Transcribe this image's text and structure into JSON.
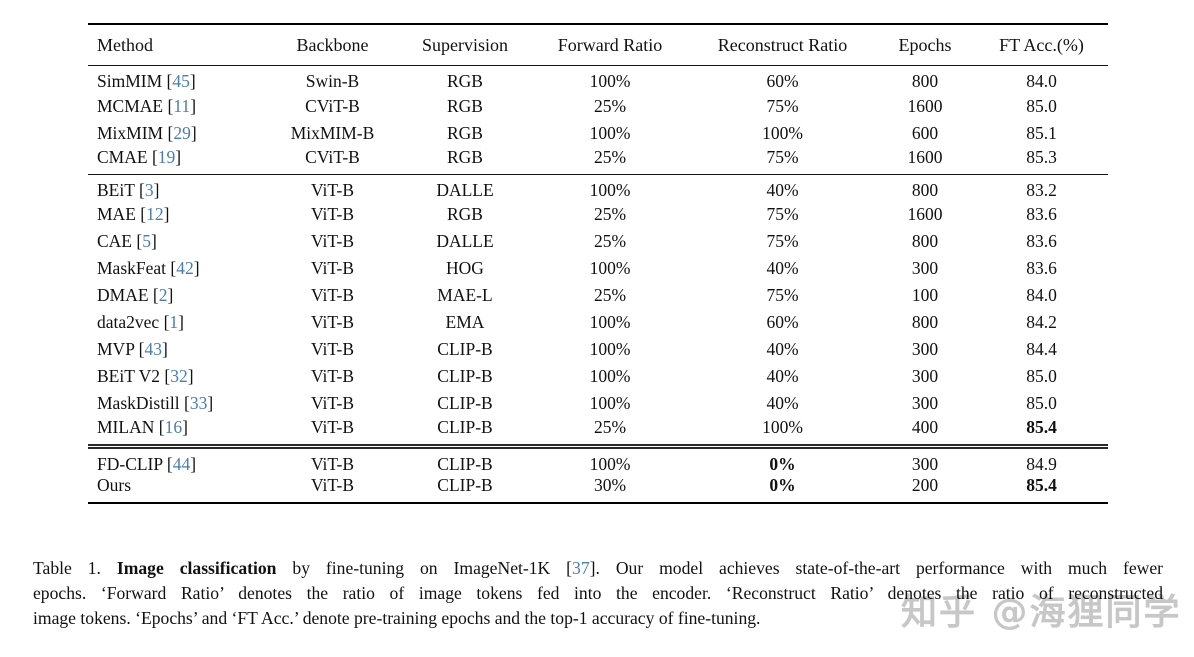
{
  "colors": {
    "citation_blue": "#4a7dae",
    "text": "#111111",
    "watermark_gray": "#9a9a9a",
    "background": "#ffffff"
  },
  "table": {
    "columns": [
      {
        "label": "Method"
      },
      {
        "label": "Backbone"
      },
      {
        "label": "Supervision"
      },
      {
        "label": "Forward Ratio"
      },
      {
        "label": "Reconstruct Ratio"
      },
      {
        "label": "Epochs"
      },
      {
        "label": "FT Acc.(%)"
      }
    ],
    "groups": [
      {
        "rows": [
          {
            "method": "SimMIM",
            "cite": "45",
            "backbone": "Swin-B",
            "supervision": "RGB",
            "forward": "100%",
            "reconstruct": "60%",
            "epochs": "800",
            "acc": "84.0"
          },
          {
            "method": "MCMAE",
            "cite": "11",
            "backbone": "CViT-B",
            "supervision": "RGB",
            "forward": "25%",
            "reconstruct": "75%",
            "epochs": "1600",
            "acc": "85.0"
          },
          {
            "method": "MixMIM",
            "cite": "29",
            "backbone": "MixMIM-B",
            "supervision": "RGB",
            "forward": "100%",
            "reconstruct": "100%",
            "epochs": "600",
            "acc": "85.1"
          },
          {
            "method": "CMAE",
            "cite": "19",
            "backbone": "CViT-B",
            "supervision": "RGB",
            "forward": "25%",
            "reconstruct": "75%",
            "epochs": "1600",
            "acc": "85.3"
          }
        ]
      },
      {
        "rows": [
          {
            "method": "BEiT",
            "cite": "3",
            "backbone": "ViT-B",
            "supervision": "DALLE",
            "forward": "100%",
            "reconstruct": "40%",
            "epochs": "800",
            "acc": "83.2"
          },
          {
            "method": "MAE",
            "cite": "12",
            "backbone": "ViT-B",
            "supervision": "RGB",
            "forward": "25%",
            "reconstruct": "75%",
            "epochs": "1600",
            "acc": "83.6"
          },
          {
            "method": "CAE",
            "cite": "5",
            "backbone": "ViT-B",
            "supervision": "DALLE",
            "forward": "25%",
            "reconstruct": "75%",
            "epochs": "800",
            "acc": "83.6"
          },
          {
            "method": "MaskFeat",
            "cite": "42",
            "backbone": "ViT-B",
            "supervision": "HOG",
            "forward": "100%",
            "reconstruct": "40%",
            "epochs": "300",
            "acc": "83.6"
          },
          {
            "method": "DMAE",
            "cite": "2",
            "backbone": "ViT-B",
            "supervision": "MAE-L",
            "forward": "25%",
            "reconstruct": "75%",
            "epochs": "100",
            "acc": "84.0"
          },
          {
            "method": "data2vec",
            "cite": "1",
            "backbone": "ViT-B",
            "supervision": "EMA",
            "forward": "100%",
            "reconstruct": "60%",
            "epochs": "800",
            "acc": "84.2"
          },
          {
            "method": "MVP",
            "cite": "43",
            "backbone": "ViT-B",
            "supervision": "CLIP-B",
            "forward": "100%",
            "reconstruct": "40%",
            "epochs": "300",
            "acc": "84.4"
          },
          {
            "method": "BEiT V2",
            "cite": "32",
            "backbone": "ViT-B",
            "supervision": "CLIP-B",
            "forward": "100%",
            "reconstruct": "40%",
            "epochs": "300",
            "acc": "85.0"
          },
          {
            "method": "MaskDistill",
            "cite": "33",
            "backbone": "ViT-B",
            "supervision": "CLIP-B",
            "forward": "100%",
            "reconstruct": "40%",
            "epochs": "300",
            "acc": "85.0"
          },
          {
            "method": "MILAN",
            "cite": "16",
            "backbone": "ViT-B",
            "supervision": "CLIP-B",
            "forward": "25%",
            "reconstruct": "100%",
            "epochs": "400",
            "acc": "85.4",
            "acc_bold": true
          }
        ]
      },
      {
        "rows": [
          {
            "method": "FD-CLIP",
            "cite": "44",
            "backbone": "ViT-B",
            "supervision": "CLIP-B",
            "forward": "100%",
            "reconstruct": "0%",
            "reconstruct_bold": true,
            "epochs": "300",
            "acc": "84.9"
          },
          {
            "method": "Ours",
            "cite": null,
            "backbone": "ViT-B",
            "supervision": "CLIP-B",
            "forward": "30%",
            "reconstruct": "0%",
            "reconstruct_bold": true,
            "epochs": "200",
            "acc": "85.4",
            "acc_bold": true
          }
        ]
      }
    ]
  },
  "caption": {
    "lines": [
      {
        "justify": true,
        "segments": [
          {
            "t": "Table 1. "
          },
          {
            "t": "Image classification",
            "b": true
          },
          {
            "t": " by fine-tuning on ImageNet-1K ["
          },
          {
            "t": "37",
            "c": true
          },
          {
            "t": "]. Our model achieves state-of-the-art performance with much fewer"
          }
        ]
      },
      {
        "justify": true,
        "segments": [
          {
            "t": "epochs. ‘Forward Ratio’ denotes the ratio of image tokens fed into the encoder. ‘Reconstruct Ratio’ denotes the ratio of reconstructed"
          }
        ]
      },
      {
        "justify": false,
        "segments": [
          {
            "t": "image tokens. ‘Epochs’ and ‘FT Acc.’ denote pre-training epochs and the top-1 accuracy of fine-tuning."
          }
        ]
      }
    ]
  },
  "watermark": {
    "text": "知乎 @海狸同学"
  }
}
